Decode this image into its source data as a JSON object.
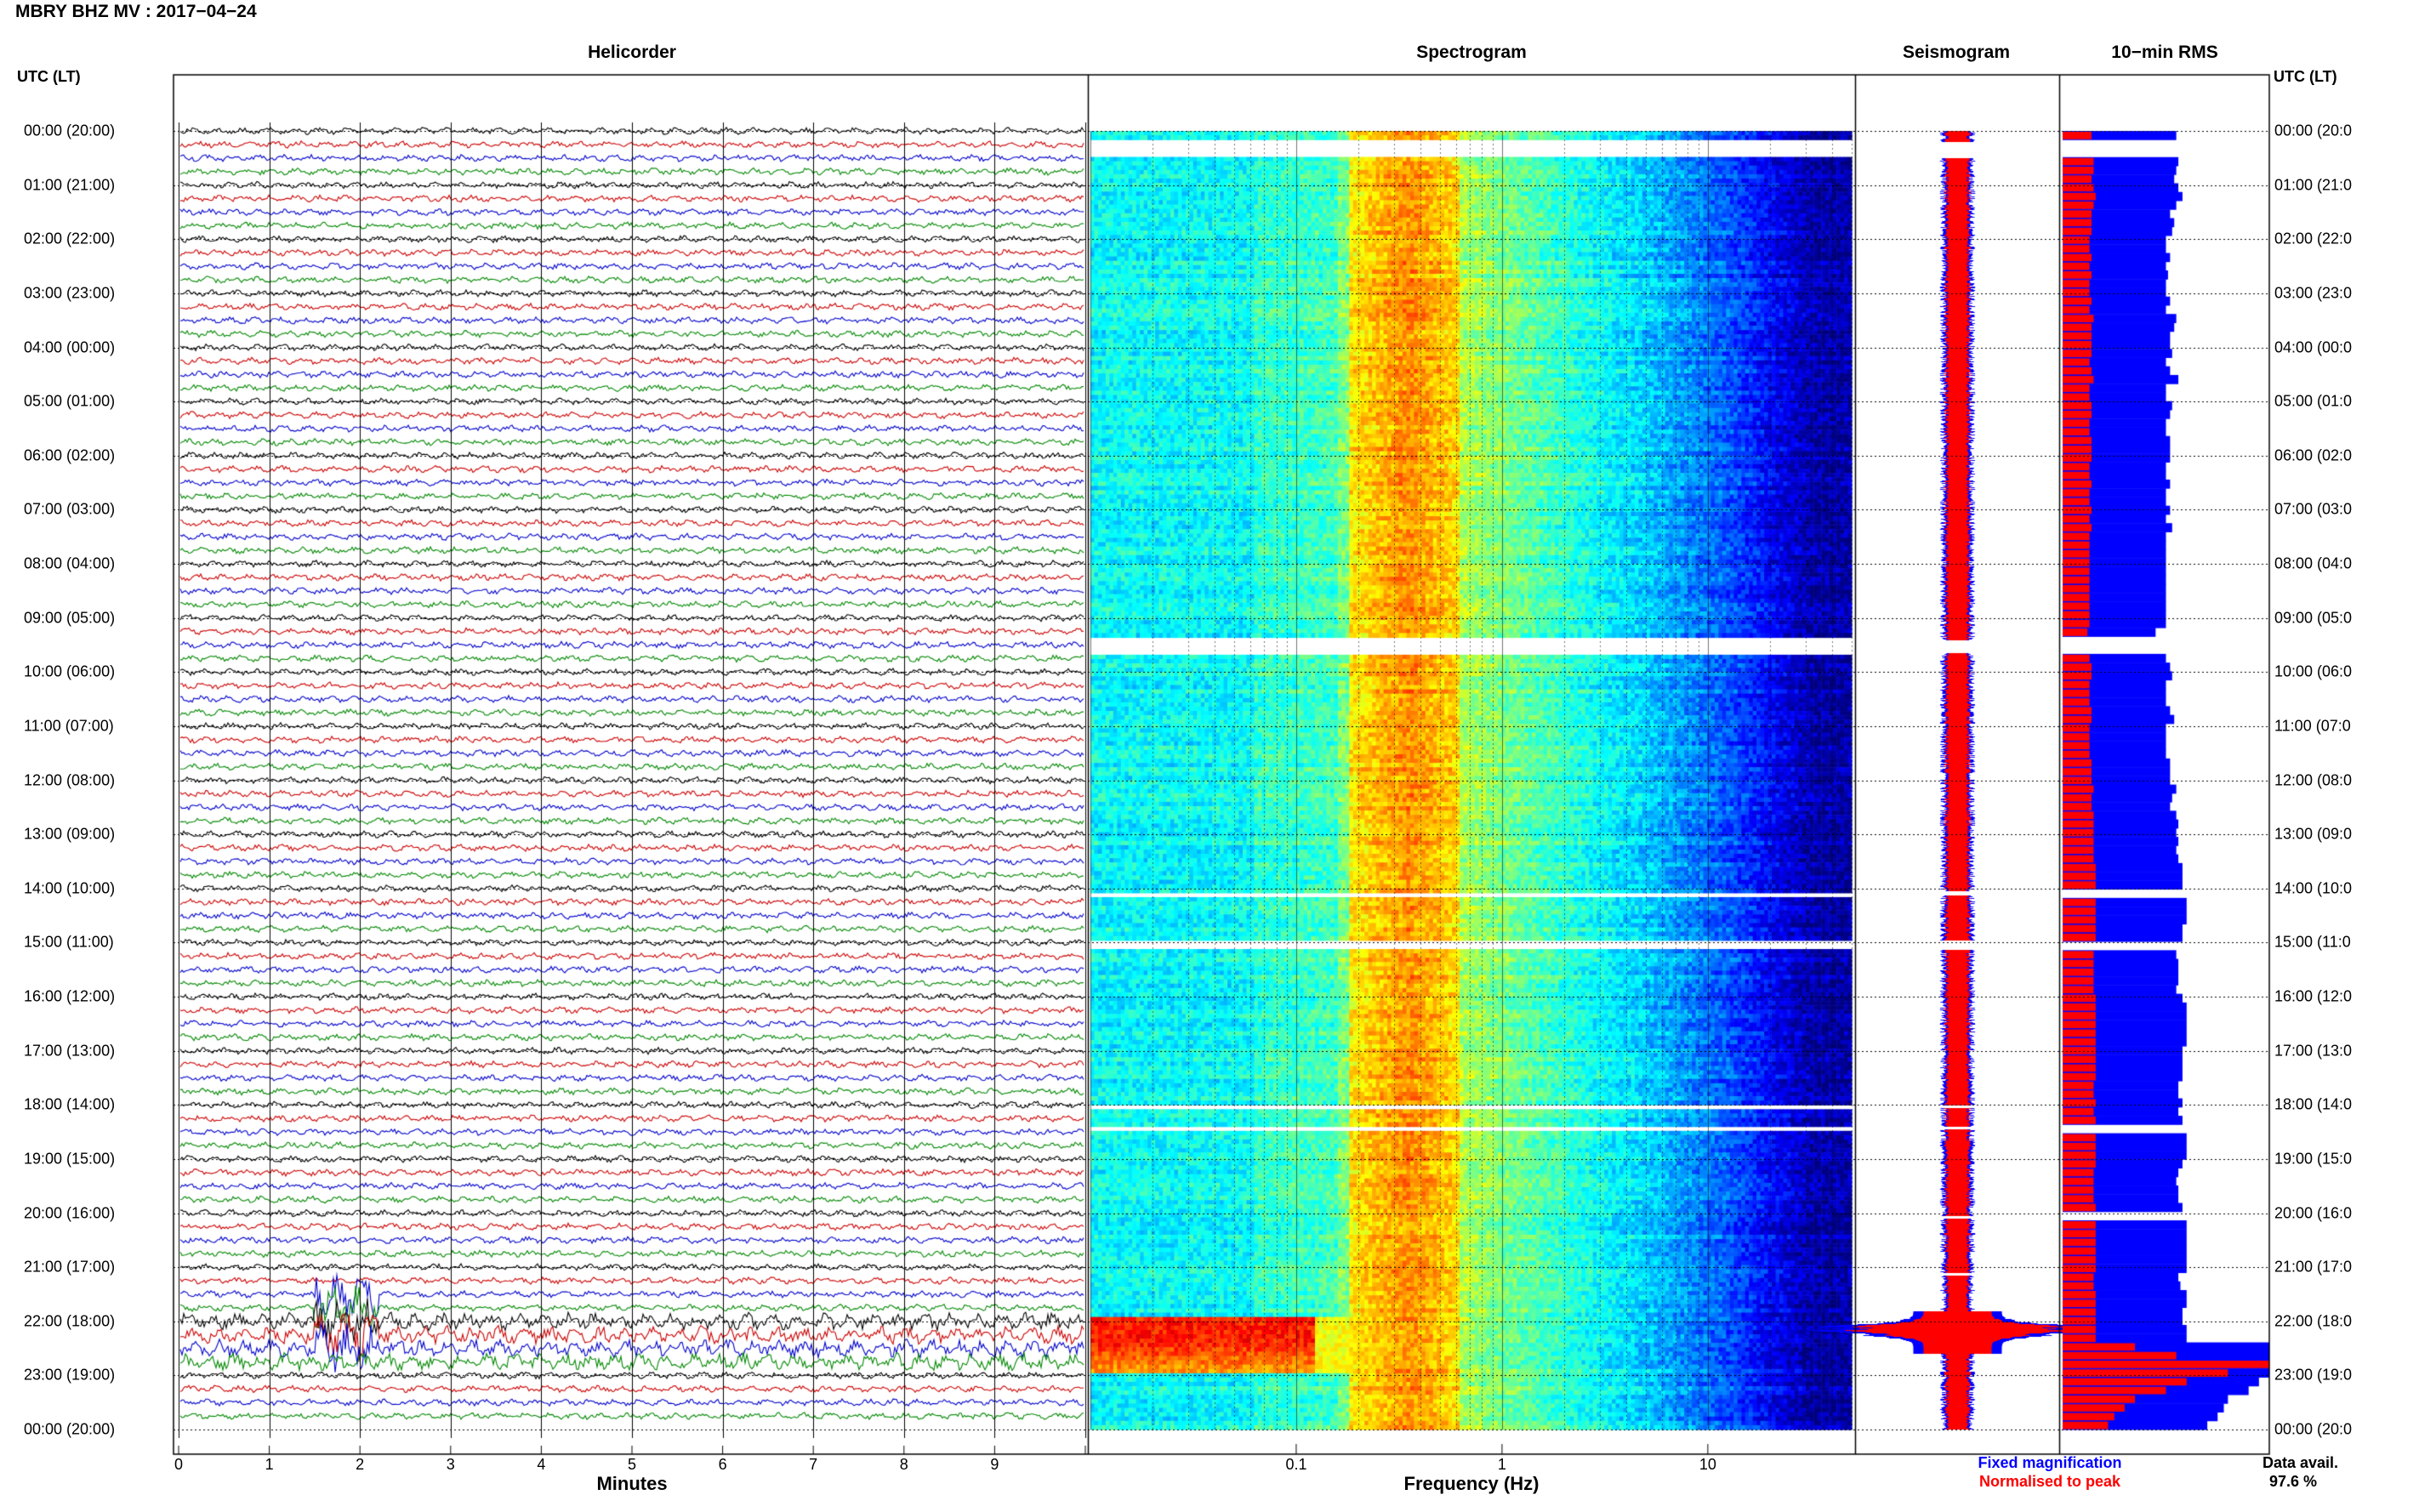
{
  "title": "MBRY BHZ MV : 2017−04−24",
  "panels": {
    "helicorder": "Helicorder",
    "spectrogram": "Spectrogram",
    "seismogram": "Seismogram",
    "rms": "10−min RMS"
  },
  "time_axis_label": "UTC (LT)",
  "time_labels": [
    "00:00 (20:00)",
    "01:00 (21:00)",
    "02:00 (22:00)",
    "03:00 (23:00)",
    "04:00 (00:00)",
    "05:00 (01:00)",
    "06:00 (02:00)",
    "07:00 (03:00)",
    "08:00 (04:00)",
    "09:00 (05:00)",
    "10:00 (06:00)",
    "11:00 (07:00)",
    "12:00 (08:00)",
    "13:00 (09:00)",
    "14:00 (10:00)",
    "15:00 (11:00)",
    "16:00 (12:00)",
    "17:00 (13:00)",
    "18:00 (14:00)",
    "19:00 (15:00)",
    "20:00 (16:00)",
    "21:00 (17:00)",
    "22:00 (18:00)",
    "23:00 (19:00)",
    "00:00 (20:00)"
  ],
  "right_time_labels": [
    "00:00 (20:0",
    "01:00 (21:0",
    "02:00 (22:0",
    "03:00 (23:0",
    "04:00 (00:0",
    "05:00 (01:0",
    "06:00 (02:0",
    "07:00 (03:0",
    "08:00 (04:0",
    "09:00 (05:0",
    "10:00 (06:0",
    "11:00 (07:0",
    "12:00 (08:0",
    "13:00 (09:0",
    "14:00 (10:0",
    "15:00 (11:0",
    "16:00 (12:0",
    "17:00 (13:0",
    "18:00 (14:0",
    "19:00 (15:0",
    "20:00 (16:0",
    "21:00 (17:0",
    "22:00 (18:0",
    "23:00 (19:0",
    "00:00 (20:0"
  ],
  "helicorder_axis": {
    "label": "Minutes",
    "ticks": [
      "0",
      "1",
      "2",
      "3",
      "4",
      "5",
      "6",
      "7",
      "8",
      "9"
    ]
  },
  "spectrogram_axis": {
    "label": "Frequency (Hz)",
    "ticks": [
      "0.1",
      "1",
      "10"
    ],
    "tick_values": [
      0.1,
      1,
      10
    ],
    "range": [
      0.01,
      50
    ],
    "scale": "log"
  },
  "legend": {
    "fixed": "Fixed magnification",
    "fixed_color": "#0000ff",
    "normalised": "Normalised to peak",
    "normalised_color": "#ff0000"
  },
  "data_avail": {
    "label": "Data avail.",
    "value": "97.6 %"
  },
  "colors": {
    "trace_cycle": [
      "#000000",
      "#cc0000",
      "#0000cc",
      "#008800"
    ],
    "rms_fixed": "#0000ff",
    "rms_norm": "#ff0000"
  },
  "chart_data": {
    "type": "heatmap",
    "description_free": true,
    "hours_range": [
      0,
      24
    ],
    "helicorder": {
      "minutes_range": [
        0,
        10
      ],
      "event": {
        "hour": 22.0,
        "minute_start": 1.5,
        "minute_end": 2.2
      },
      "elevated_noise_hours": [
        21.9,
        22.9
      ]
    },
    "data_gaps_hours": [
      [
        0.2,
        0.5
      ],
      [
        9.4,
        9.65
      ],
      [
        14.05,
        14.12
      ],
      [
        14.95,
        15.12
      ],
      [
        18.0,
        18.05
      ],
      [
        18.4,
        18.45
      ],
      [
        20.05,
        20.1
      ],
      [
        21.1,
        21.15
      ]
    ],
    "rms_10min": {
      "fixed_relative": [
        0.55,
        0.52,
        0.58,
        0.56,
        0.55,
        0.54,
        0.56,
        0.58,
        0.55,
        0.52,
        0.54,
        0.53,
        0.5,
        0.5,
        0.52,
        0.5,
        0.51,
        0.5,
        0.5,
        0.52,
        0.5,
        0.55,
        0.54,
        0.52,
        0.52,
        0.53,
        0.5,
        0.52,
        0.56,
        0.5,
        0.5,
        0.53,
        0.52,
        0.5,
        0.5,
        0.52,
        0.52,
        0.52,
        0.5,
        0.5,
        0.52,
        0.5,
        0.5,
        0.52,
        0.5,
        0.53,
        0.5,
        0.5,
        0.5,
        0.5,
        0.5,
        0.5,
        0.5,
        0.5,
        0.5,
        0.5,
        0.5,
        0.45,
        0.5,
        0.5,
        0.5,
        0.52,
        0.53,
        0.5,
        0.5,
        0.5,
        0.52,
        0.54,
        0.5,
        0.5,
        0.5,
        0.5,
        0.52,
        0.52,
        0.52,
        0.55,
        0.53,
        0.52,
        0.55,
        0.56,
        0.55,
        0.56,
        0.55,
        0.56,
        0.58,
        0.58,
        0.58,
        0.6,
        0.6,
        0.6,
        0.6,
        0.58,
        0.58,
        0.56,
        0.55,
        0.56,
        0.56,
        0.56,
        0.55,
        0.58,
        0.6,
        0.6,
        0.6,
        0.6,
        0.6,
        0.58,
        0.58,
        0.58,
        0.58,
        0.56,
        0.56,
        0.58,
        0.56,
        0.58,
        0.6,
        0.6,
        0.6,
        0.6,
        0.58,
        0.56,
        0.55,
        0.56,
        0.56,
        0.58,
        0.58,
        0.6,
        0.6,
        0.6,
        0.6,
        0.6,
        0.6,
        0.56,
        0.57,
        0.6,
        0.6,
        0.58,
        0.58,
        0.6,
        0.6,
        1.0,
        1.0,
        1.0,
        1.0,
        0.95,
        0.9,
        0.8,
        0.78,
        0.75,
        0.7
      ],
      "normalised_relative": [
        0.14,
        0.14,
        0.16,
        0.15,
        0.15,
        0.14,
        0.15,
        0.16,
        0.15,
        0.14,
        0.14,
        0.14,
        0.13,
        0.13,
        0.14,
        0.13,
        0.14,
        0.13,
        0.13,
        0.14,
        0.13,
        0.15,
        0.14,
        0.14,
        0.14,
        0.14,
        0.13,
        0.14,
        0.15,
        0.13,
        0.13,
        0.14,
        0.14,
        0.13,
        0.13,
        0.14,
        0.14,
        0.14,
        0.13,
        0.13,
        0.14,
        0.13,
        0.13,
        0.14,
        0.13,
        0.14,
        0.13,
        0.13,
        0.13,
        0.13,
        0.13,
        0.13,
        0.13,
        0.13,
        0.13,
        0.13,
        0.13,
        0.12,
        0.13,
        0.13,
        0.13,
        0.14,
        0.14,
        0.13,
        0.13,
        0.13,
        0.14,
        0.14,
        0.13,
        0.13,
        0.13,
        0.13,
        0.14,
        0.14,
        0.14,
        0.15,
        0.14,
        0.14,
        0.15,
        0.15,
        0.15,
        0.15,
        0.15,
        0.15,
        0.16,
        0.16,
        0.16,
        0.16,
        0.16,
        0.16,
        0.16,
        0.16,
        0.16,
        0.15,
        0.15,
        0.15,
        0.15,
        0.15,
        0.15,
        0.16,
        0.16,
        0.16,
        0.16,
        0.16,
        0.16,
        0.16,
        0.16,
        0.16,
        0.16,
        0.15,
        0.15,
        0.16,
        0.15,
        0.16,
        0.16,
        0.16,
        0.16,
        0.16,
        0.16,
        0.15,
        0.15,
        0.15,
        0.15,
        0.16,
        0.16,
        0.16,
        0.16,
        0.16,
        0.16,
        0.16,
        0.16,
        0.15,
        0.15,
        0.16,
        0.16,
        0.16,
        0.16,
        0.16,
        0.16,
        0.35,
        0.55,
        1.0,
        0.8,
        0.6,
        0.5,
        0.35,
        0.3,
        0.25,
        0.22
      ]
    }
  }
}
